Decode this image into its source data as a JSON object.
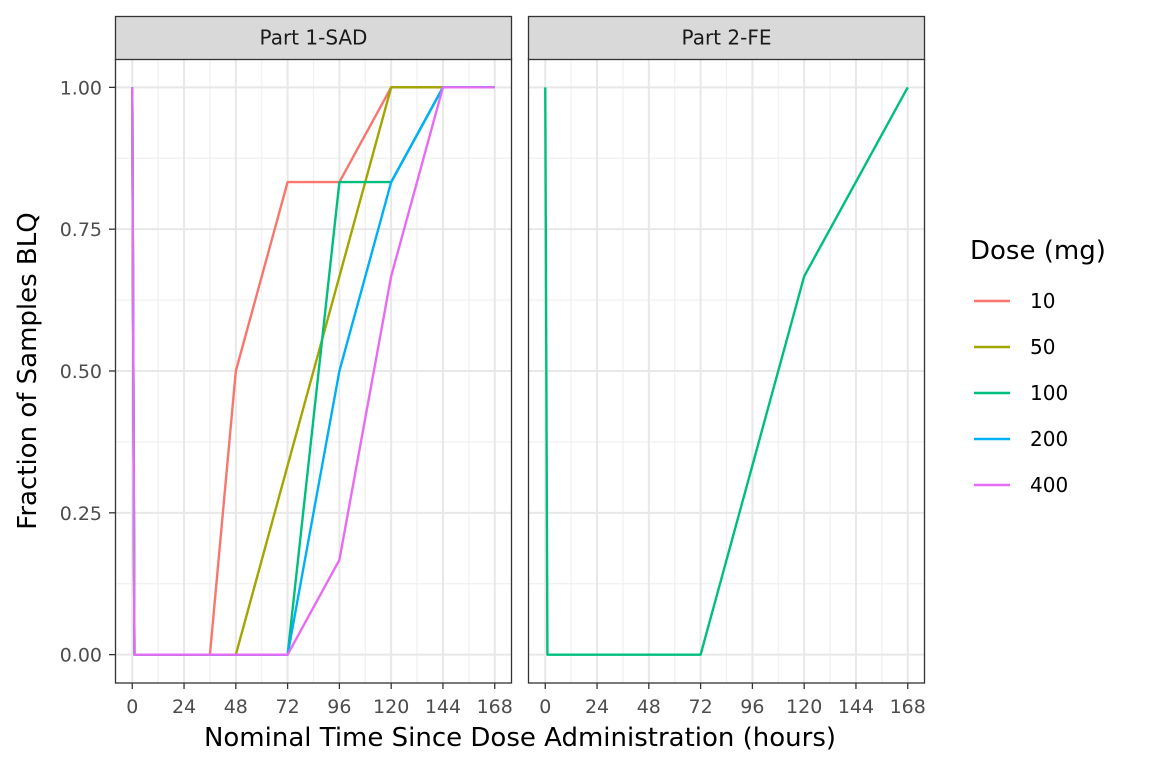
{
  "chart_data": {
    "type": "line",
    "xlabel": "Nominal Time Since Dose Administration (hours)",
    "ylabel": "Fraction of Samples BLQ",
    "x_ticks": [
      0,
      24,
      48,
      72,
      96,
      120,
      144,
      168
    ],
    "y_ticks": [
      "0.00",
      "0.25",
      "0.50",
      "0.75",
      "1.00"
    ],
    "xlim": [
      -8,
      176
    ],
    "ylim": [
      -0.05,
      1.05
    ],
    "grid": true,
    "legend": {
      "title": "Dose (mg)",
      "position": "right",
      "entries": [
        "10",
        "50",
        "100",
        "200",
        "400"
      ]
    },
    "colors": {
      "10": "#F8766D",
      "50": "#A3A500",
      "100": "#00BF7D",
      "200": "#00B0F6",
      "400": "#E76BF3"
    },
    "panels": [
      {
        "strip": "Part 1-SAD",
        "series": [
          {
            "name": "10",
            "x": [
              0,
              1,
              36,
              48,
              72,
              96,
              120,
              144,
              168
            ],
            "y": [
              1.0,
              0.0,
              0.0,
              0.5,
              0.833,
              0.833,
              1.0,
              1.0,
              1.0
            ]
          },
          {
            "name": "50",
            "x": [
              0,
              1,
              48,
              120,
              144,
              168
            ],
            "y": [
              1.0,
              0.0,
              0.0,
              1.0,
              1.0,
              1.0
            ]
          },
          {
            "name": "100",
            "x": [
              0,
              1,
              72,
              96,
              120,
              144,
              168
            ],
            "y": [
              1.0,
              0.0,
              0.0,
              0.833,
              0.833,
              1.0,
              1.0
            ]
          },
          {
            "name": "200",
            "x": [
              0,
              1,
              72,
              96,
              120,
              144,
              168
            ],
            "y": [
              1.0,
              0.0,
              0.0,
              0.5,
              0.833,
              1.0,
              1.0
            ]
          },
          {
            "name": "400",
            "x": [
              0,
              1,
              72,
              96,
              120,
              144,
              168
            ],
            "y": [
              1.0,
              0.0,
              0.0,
              0.167,
              0.667,
              1.0,
              1.0
            ]
          }
        ]
      },
      {
        "strip": "Part 2-FE",
        "series": [
          {
            "name": "100",
            "x": [
              0,
              1,
              72,
              120,
              168
            ],
            "y": [
              1.0,
              0.0,
              0.0,
              0.667,
              1.0
            ]
          }
        ]
      }
    ]
  }
}
